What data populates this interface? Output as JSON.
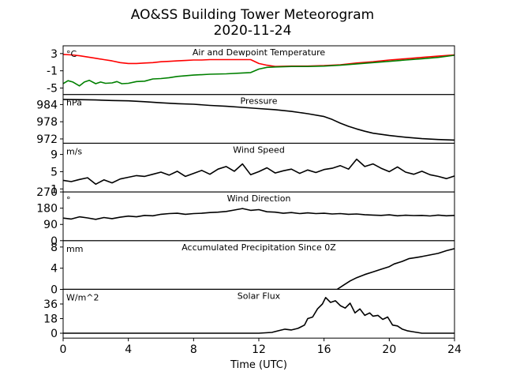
{
  "chart_data": {
    "type": "line",
    "title": "AO&SS Building Tower Meteorogram",
    "subtitle": "2020-11-24",
    "xlabel": "Time (UTC)",
    "xlim": [
      0,
      24
    ],
    "xticks": [
      0,
      4,
      8,
      12,
      16,
      20,
      24
    ],
    "panels": [
      {
        "name": "Air and Dewpoint Temperature",
        "unit": "°C",
        "ylim": [
          -6.5,
          4.8
        ],
        "yticks": [
          3,
          -1,
          -5
        ],
        "series": [
          {
            "color": "#ff0000",
            "x": [
              0,
              0.5,
              1,
              1.5,
              2,
              2.5,
              3,
              3.5,
              4,
              4.5,
              5,
              5.5,
              6,
              6.5,
              7,
              7.5,
              8,
              8.5,
              9,
              9.5,
              10,
              10.5,
              11,
              11.5,
              12,
              12.5,
              13,
              14,
              15,
              16,
              17,
              18,
              19,
              20,
              21,
              22,
              23,
              24
            ],
            "values": [
              2.8,
              2.7,
              2.5,
              2.2,
              1.9,
              1.6,
              1.3,
              0.9,
              0.7,
              0.7,
              0.8,
              0.9,
              1.1,
              1.2,
              1.3,
              1.4,
              1.5,
              1.5,
              1.6,
              1.6,
              1.6,
              1.6,
              1.6,
              1.6,
              0.7,
              0.3,
              0.0,
              0.1,
              0.1,
              0.2,
              0.4,
              0.8,
              1.1,
              1.5,
              1.8,
              2.1,
              2.4,
              2.7
            ]
          },
          {
            "color": "#008000",
            "x": [
              0,
              0.3,
              0.6,
              1,
              1.3,
              1.6,
              2,
              2.3,
              2.6,
              3,
              3.3,
              3.6,
              4,
              4.5,
              5,
              5.5,
              6,
              6.5,
              7,
              8,
              9,
              10,
              11,
              11.5,
              12,
              12.5,
              13,
              14,
              15,
              16,
              17,
              18,
              19,
              20,
              21,
              22,
              23,
              24
            ],
            "values": [
              -4.0,
              -3.3,
              -3.6,
              -4.5,
              -3.6,
              -3.2,
              -4.0,
              -3.6,
              -3.9,
              -3.8,
              -3.5,
              -4.0,
              -3.9,
              -3.5,
              -3.4,
              -2.9,
              -2.8,
              -2.6,
              -2.3,
              -2.0,
              -1.8,
              -1.7,
              -1.5,
              -1.4,
              -0.6,
              -0.2,
              -0.1,
              0.0,
              0.0,
              0.1,
              0.3,
              0.6,
              0.9,
              1.2,
              1.5,
              1.8,
              2.1,
              2.6
            ]
          }
        ]
      },
      {
        "name": "Pressure",
        "unit": "hPa",
        "ylim": [
          970.5,
          987.5
        ],
        "yticks": [
          984,
          978,
          972
        ],
        "series": [
          {
            "color": "#000000",
            "x": [
              0,
              1,
              2,
              3,
              4,
              5,
              6,
              7,
              8,
              9,
              10,
              11,
              12,
              13,
              14,
              15,
              16,
              16.5,
              17,
              17.5,
              18,
              18.5,
              19,
              20,
              21,
              22,
              23,
              24
            ],
            "values": [
              985.8,
              985.7,
              985.6,
              985.4,
              985.3,
              985.0,
              984.6,
              984.3,
              984.1,
              983.7,
              983.4,
              983.0,
              982.6,
              982.2,
              981.6,
              980.8,
              979.8,
              978.8,
              977.5,
              976.4,
              975.5,
              974.7,
              974.0,
              973.2,
              972.6,
              972.1,
              971.8,
              971.6
            ]
          }
        ]
      },
      {
        "name": "Wind Speed",
        "unit": "m/s",
        "ylim": [
          0.3,
          11.6
        ],
        "yticks": [
          9,
          5,
          1
        ],
        "series": [
          {
            "color": "#000000",
            "x": [
              0,
              0.5,
              1,
              1.5,
              2,
              2.5,
              3,
              3.5,
              4,
              4.5,
              5,
              5.5,
              6,
              6.5,
              7,
              7.5,
              8,
              8.5,
              9,
              9.5,
              10,
              10.5,
              11,
              11.5,
              12,
              12.5,
              13,
              13.5,
              14,
              14.5,
              15,
              15.5,
              16,
              16.5,
              17,
              17.5,
              18,
              18.5,
              19,
              19.5,
              20,
              20.5,
              21,
              21.5,
              22,
              22.5,
              23,
              23.5,
              24
            ],
            "values": [
              3.0,
              2.7,
              3.2,
              3.6,
              2.1,
              3.1,
              2.4,
              3.3,
              3.7,
              4.1,
              3.9,
              4.4,
              4.9,
              4.2,
              5.1,
              3.9,
              4.6,
              5.3,
              4.4,
              5.6,
              6.2,
              5.1,
              6.8,
              4.3,
              5.0,
              5.9,
              4.7,
              5.2,
              5.6,
              4.6,
              5.4,
              4.8,
              5.5,
              5.8,
              6.4,
              5.6,
              7.9,
              6.2,
              6.8,
              5.8,
              5.0,
              6.1,
              4.9,
              4.4,
              5.1,
              4.3,
              3.9,
              3.4,
              4.0
            ]
          }
        ]
      },
      {
        "name": "Wind Direction",
        "unit": "°",
        "ylim": [
          0,
          270
        ],
        "yticks": [
          270,
          180,
          90,
          0
        ],
        "series": [
          {
            "color": "#000000",
            "x": [
              0,
              0.5,
              1,
              1.5,
              2,
              2.5,
              3,
              3.5,
              4,
              4.5,
              5,
              5.5,
              6,
              6.5,
              7,
              7.5,
              8,
              8.5,
              9,
              9.5,
              10,
              10.5,
              11,
              11.5,
              12,
              12.5,
              13,
              13.5,
              14,
              14.5,
              15,
              15.5,
              16,
              16.5,
              17,
              17.5,
              18,
              18.5,
              19,
              19.5,
              20,
              20.5,
              21,
              21.5,
              22,
              22.5,
              23,
              23.5,
              24
            ],
            "values": [
              125,
              120,
              132,
              126,
              118,
              128,
              122,
              130,
              136,
              132,
              140,
              138,
              146,
              150,
              152,
              146,
              150,
              152,
              156,
              158,
              162,
              170,
              178,
              168,
              172,
              160,
              158,
              152,
              156,
              150,
              154,
              150,
              152,
              148,
              150,
              146,
              148,
              144,
              142,
              140,
              143,
              138,
              141,
              139,
              140,
              137,
              142,
              138,
              140
            ]
          }
        ]
      },
      {
        "name": "Accumulated Precipitation Since 0Z",
        "unit": "mm",
        "ylim": [
          0,
          9.2
        ],
        "yticks": [
          8,
          4,
          0
        ],
        "series": [
          {
            "color": "#000000",
            "x": [
              0,
              16.8,
              17.2,
              17.6,
              18,
              18.5,
              19,
              19.5,
              20,
              20.3,
              20.8,
              21.2,
              21.6,
              22,
              22.5,
              23,
              23.5,
              24
            ],
            "values": [
              0,
              0,
              0.8,
              1.6,
              2.2,
              2.8,
              3.3,
              3.8,
              4.3,
              4.8,
              5.3,
              5.8,
              6.0,
              6.2,
              6.5,
              6.8,
              7.3,
              7.7
            ]
          }
        ]
      },
      {
        "name": "Solar Flux",
        "unit": "W/m^2",
        "ylim": [
          -6,
          54
        ],
        "yticks": [
          36,
          18,
          0
        ],
        "series": [
          {
            "color": "#000000",
            "x": [
              0,
              12,
              12.8,
              13.2,
              13.6,
              14,
              14.4,
              14.8,
              15,
              15.3,
              15.6,
              15.9,
              16.1,
              16.4,
              16.7,
              17,
              17.3,
              17.6,
              17.9,
              18.2,
              18.5,
              18.8,
              19,
              19.3,
              19.6,
              19.9,
              20.2,
              20.5,
              20.8,
              21.1,
              21.4,
              21.7,
              22,
              24
            ],
            "values": [
              0,
              0,
              1,
              3,
              5,
              4,
              6,
              10,
              18,
              20,
              30,
              36,
              44,
              38,
              40,
              34,
              31,
              37,
              25,
              30,
              22,
              25,
              21,
              22,
              17,
              20,
              10,
              9,
              5,
              3,
              2,
              1,
              0,
              0
            ]
          }
        ]
      }
    ]
  }
}
